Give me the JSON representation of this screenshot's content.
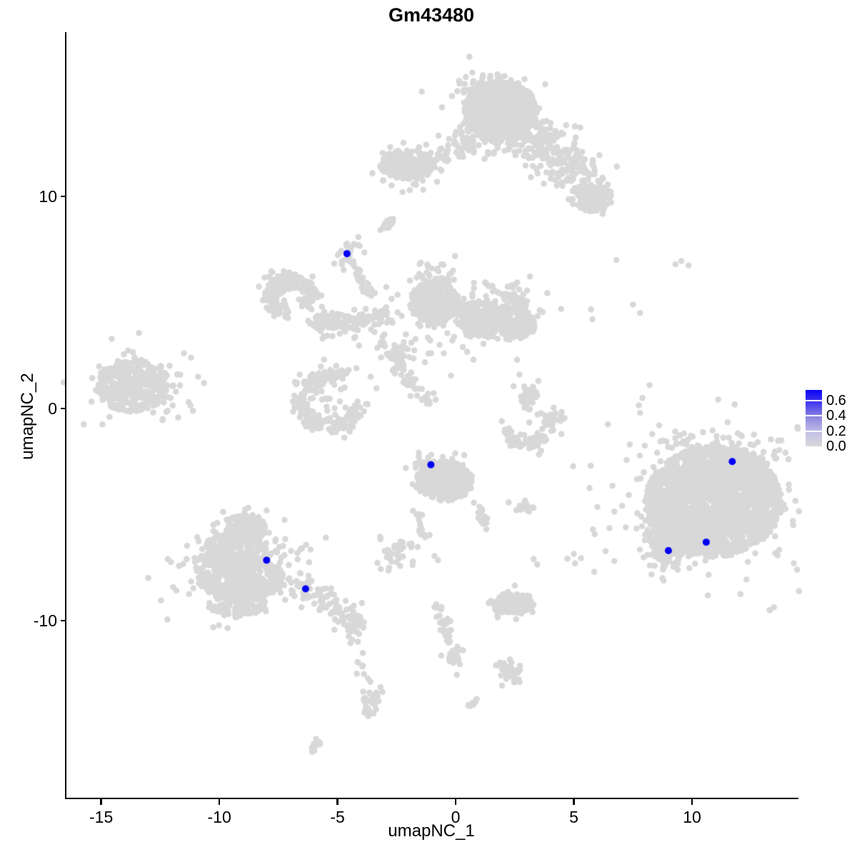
{
  "title": "Gm43480",
  "axes": {
    "x": {
      "label": "umapNC_1",
      "ticks": [
        -15,
        -10,
        -5,
        0,
        5,
        10
      ],
      "range": [
        -16.47,
        14.41
      ]
    },
    "y": {
      "label": "umapNC_2",
      "ticks": [
        -10,
        0,
        10
      ],
      "range": [
        -18.38,
        17.74
      ]
    }
  },
  "legend": {
    "breaks": [
      0.0,
      0.2,
      0.4,
      0.6
    ],
    "break_labels": [
      "0.0",
      "0.2",
      "0.4",
      "0.6"
    ],
    "scale_max": 0.735,
    "gradient_bottom_to_top": [
      "#D9D9D9",
      "#C3BFE6",
      "#928BDF",
      "#4A3FEF",
      "#0A04F2"
    ]
  },
  "colors": {
    "point_gray": "#D8D8D8",
    "point_blue": "#0000F5",
    "axis": "#000000",
    "background": "#FFFFFF"
  },
  "chart_data": {
    "type": "scatter",
    "title": "Gm43480",
    "xlabel": "umapNC_1",
    "ylabel": "umapNC_2",
    "xlim": [
      -16.47,
      14.41
    ],
    "ylim": [
      -18.38,
      17.74
    ],
    "x_ticks": [
      -15,
      -10,
      -5,
      0,
      5,
      10
    ],
    "y_ticks": [
      -10,
      0,
      10
    ],
    "grid": false,
    "legend_position": "right",
    "seed": 1337,
    "expression_points": [
      {
        "x": -4.6,
        "y": 7.3,
        "value": 0.6
      },
      {
        "x": -1.05,
        "y": -2.65,
        "value": 0.6
      },
      {
        "x": -8.0,
        "y": -7.15,
        "value": 0.6
      },
      {
        "x": -6.35,
        "y": -8.5,
        "value": 0.6
      },
      {
        "x": 9.0,
        "y": -6.7,
        "value": 0.6
      },
      {
        "x": 10.6,
        "y": -6.3,
        "value": 0.6
      },
      {
        "x": 11.7,
        "y": -2.5,
        "value": 0.6
      }
    ],
    "background_clusters": [
      {
        "t": "disk",
        "x": 1.9,
        "y": 14.0,
        "rx": 1.55,
        "ry": 1.45,
        "n": 650
      },
      {
        "t": "blob",
        "x": 1.5,
        "y": 14.7,
        "sx": 0.7,
        "sy": 0.55,
        "n": 150
      },
      {
        "t": "blob",
        "x": 1.9,
        "y": 12.9,
        "sx": 1.2,
        "sy": 0.55,
        "n": 120
      },
      {
        "t": "blob",
        "x": 4.0,
        "y": 12.1,
        "sx": 0.95,
        "sy": 0.55,
        "rot": -40,
        "n": 170
      },
      {
        "t": "line",
        "x1": 4.9,
        "y1": 11.2,
        "x2": 6.1,
        "y2": 9.9,
        "j": 0.45,
        "n": 90
      },
      {
        "t": "disk",
        "x": 5.85,
        "y": 9.85,
        "rx": 0.75,
        "ry": 0.6,
        "n": 90
      },
      {
        "t": "disk",
        "x": -2.05,
        "y": 11.5,
        "rx": 1.15,
        "ry": 0.7,
        "n": 170
      },
      {
        "t": "blob",
        "x": -2.0,
        "y": 11.5,
        "sx": 0.75,
        "sy": 0.5,
        "n": 60
      },
      {
        "t": "line",
        "x1": -0.8,
        "y1": 11.6,
        "x2": 0.55,
        "y2": 12.4,
        "j": 0.3,
        "n": 45
      },
      {
        "t": "line",
        "x1": -3.1,
        "y1": 8.5,
        "x2": -2.65,
        "y2": 9.0,
        "j": 0.09,
        "n": 22
      },
      {
        "t": "blob",
        "x": -4.55,
        "y": 7.25,
        "sx": 0.3,
        "sy": 0.38,
        "n": 30
      },
      {
        "t": "line",
        "x1": -4.3,
        "y1": 6.6,
        "x2": -3.55,
        "y2": 5.1,
        "j": 0.15,
        "n": 28
      },
      {
        "t": "arc",
        "x": -7.0,
        "y": 5.3,
        "r": 0.85,
        "th": 0.42,
        "a0": -40,
        "a1": 265,
        "n": 170
      },
      {
        "t": "blob",
        "x": -7.5,
        "y": 5.9,
        "sx": 0.3,
        "sy": 0.25,
        "n": 30
      },
      {
        "t": "line",
        "x1": -6.1,
        "y1": 4.15,
        "x2": -4.5,
        "y2": 3.95,
        "j": 0.22,
        "n": 55
      },
      {
        "t": "blob",
        "x": -5.3,
        "y": 3.95,
        "sx": 0.3,
        "sy": 0.3,
        "n": 40
      },
      {
        "t": "line",
        "x1": -4.4,
        "y1": 4.0,
        "x2": -2.9,
        "y2": 4.35,
        "j": 0.25,
        "n": 55
      },
      {
        "t": "disk",
        "x": -0.9,
        "y": 5.0,
        "rx": 1.05,
        "ry": 1.0,
        "n": 260
      },
      {
        "t": "blob",
        "x": -0.9,
        "y": 6.1,
        "sx": 0.42,
        "sy": 0.5,
        "n": 60
      },
      {
        "t": "disk",
        "x": 1.0,
        "y": 4.25,
        "rx": 1.0,
        "ry": 0.85,
        "n": 220
      },
      {
        "t": "disk",
        "x": 2.6,
        "y": 4.0,
        "rx": 0.8,
        "ry": 0.72,
        "n": 150
      },
      {
        "t": "blob",
        "x": 2.25,
        "y": 4.9,
        "sx": 0.5,
        "sy": 0.45,
        "n": 55
      },
      {
        "t": "blob",
        "x": 0.6,
        "y": 4.6,
        "sx": 1.5,
        "sy": 0.75,
        "n": 130
      },
      {
        "t": "blob",
        "x": -2.6,
        "y": 2.75,
        "sx": 0.75,
        "sy": 0.55,
        "n": 22
      },
      {
        "t": "blob",
        "x": -2.45,
        "y": 2.55,
        "sx": 0.22,
        "sy": 0.22,
        "n": 32
      },
      {
        "t": "line",
        "x1": -2.55,
        "y1": 2.0,
        "x2": -1.3,
        "y2": 0.6,
        "j": 0.13,
        "n": 32
      },
      {
        "t": "blob",
        "x": -1.15,
        "y": 0.45,
        "sx": 0.16,
        "sy": 0.16,
        "n": 12
      },
      {
        "t": "arc",
        "x": -5.3,
        "y": 0.35,
        "r": 1.25,
        "th": 0.45,
        "a0": 60,
        "a1": 360,
        "n": 210
      },
      {
        "t": "blob",
        "x": -5.3,
        "y": 0.4,
        "sx": 0.5,
        "sy": 0.45,
        "n": 14
      },
      {
        "t": "pts",
        "p": [
          [
            -6.6,
            1.6
          ],
          [
            -6.8,
            1.25
          ],
          [
            -4.2,
            1.9
          ],
          [
            -3.6,
            1.5
          ],
          [
            -3.35,
            0.95
          ],
          [
            -4.6,
            1.7
          ]
        ]
      },
      {
        "t": "disk",
        "x": 3.1,
        "y": 0.55,
        "rx": 0.38,
        "ry": 0.6,
        "n": 40
      },
      {
        "t": "pts",
        "p": [
          [
            2.6,
            2.3
          ],
          [
            2.7,
            1.6
          ],
          [
            2.45,
            1.05
          ],
          [
            3.5,
            1.3
          ]
        ]
      },
      {
        "t": "arc",
        "x": 2.95,
        "y": -0.85,
        "r": 0.8,
        "th": 0.34,
        "a0": 185,
        "a1": 330,
        "n": 60
      },
      {
        "t": "blob",
        "x": 3.9,
        "y": -0.5,
        "sx": 0.3,
        "sy": 0.28,
        "n": 30
      },
      {
        "t": "pts",
        "p": [
          [
            4.6,
            -0.45
          ],
          [
            1.95,
            -0.6
          ]
        ]
      },
      {
        "t": "disk",
        "x": -13.7,
        "y": 1.1,
        "rx": 1.5,
        "ry": 1.25,
        "n": 300
      },
      {
        "t": "blob",
        "x": -13.7,
        "y": 1.05,
        "sx": 1.0,
        "sy": 0.8,
        "n": 70
      },
      {
        "t": "blob",
        "x": -11.95,
        "y": 0.8,
        "sx": 0.6,
        "sy": 0.65,
        "n": 26
      },
      {
        "t": "pts",
        "p": [
          [
            -11.5,
            2.6
          ],
          [
            -11.2,
            2.4
          ],
          [
            -10.9,
            1.5
          ],
          [
            -12.4,
            -0.5
          ],
          [
            -11.3,
            0.3
          ]
        ]
      },
      {
        "t": "disk",
        "x": -0.45,
        "y": -3.4,
        "rx": 1.2,
        "ry": 0.95,
        "n": 280
      },
      {
        "t": "blob",
        "x": -0.9,
        "y": -3.1,
        "sx": 0.55,
        "sy": 0.45,
        "n": 90
      },
      {
        "t": "line",
        "x1": 0.85,
        "y1": -4.4,
        "x2": 1.3,
        "y2": -5.6,
        "j": 0.16,
        "n": 18
      },
      {
        "t": "line",
        "x1": -1.6,
        "y1": -4.8,
        "x2": -1.3,
        "y2": -6.1,
        "j": 0.11,
        "n": 16
      },
      {
        "t": "blob",
        "x": -2.5,
        "y": -6.9,
        "sx": 0.42,
        "sy": 0.38,
        "n": 42
      },
      {
        "t": "pts",
        "p": [
          [
            -0.9,
            -6.95
          ],
          [
            -0.75,
            -7.15
          ]
        ]
      },
      {
        "t": "line",
        "x1": 2.45,
        "y1": -4.6,
        "x2": 3.35,
        "y2": -4.75,
        "j": 0.13,
        "n": 16
      },
      {
        "t": "pts",
        "p": [
          [
            3.3,
            -7.1
          ],
          [
            3.45,
            -7.35
          ],
          [
            5.0,
            -6.85
          ],
          [
            5.3,
            -7.05
          ],
          [
            5.05,
            -7.3
          ]
        ]
      },
      {
        "t": "disk",
        "x": 2.4,
        "y": -9.2,
        "rx": 0.95,
        "ry": 0.5,
        "n": 110
      },
      {
        "t": "blob",
        "x": 2.4,
        "y": -9.2,
        "sx": 0.5,
        "sy": 0.3,
        "n": 40
      },
      {
        "t": "pts",
        "p": [
          [
            2.5,
            -8.35
          ]
        ]
      },
      {
        "t": "line",
        "x1": -0.9,
        "y1": -8.9,
        "x2": -0.3,
        "y2": -10.7,
        "j": 0.14,
        "n": 22
      },
      {
        "t": "line",
        "x1": -0.3,
        "y1": -10.7,
        "x2": 0.1,
        "y2": -11.9,
        "j": 0.12,
        "n": 20
      },
      {
        "t": "blob",
        "x": 0.0,
        "y": -11.7,
        "sx": 0.22,
        "sy": 0.3,
        "n": 16
      },
      {
        "t": "blob",
        "x": 2.3,
        "y": -12.5,
        "sx": 0.33,
        "sy": 0.3,
        "n": 30
      },
      {
        "t": "line",
        "x1": 1.95,
        "y1": -12.15,
        "x2": 2.65,
        "y2": -12.9,
        "j": 0.1,
        "n": 14
      },
      {
        "t": "pts",
        "p": [
          [
            1.7,
            -12.1
          ]
        ]
      },
      {
        "t": "line",
        "x1": 0.5,
        "y1": -14.05,
        "x2": 0.9,
        "y2": -13.7,
        "j": 0.07,
        "n": 12
      },
      {
        "t": "disk",
        "x": -8.9,
        "y": -5.6,
        "rx": 0.85,
        "ry": 0.65,
        "n": 110
      },
      {
        "t": "disk",
        "x": -9.3,
        "y": -6.8,
        "rx": 1.5,
        "ry": 0.9,
        "n": 260
      },
      {
        "t": "disk",
        "x": -9.1,
        "y": -8.0,
        "rx": 1.85,
        "ry": 1.0,
        "n": 330
      },
      {
        "t": "disk",
        "x": -9.2,
        "y": -9.2,
        "rx": 1.25,
        "ry": 0.65,
        "n": 130
      },
      {
        "t": "blob",
        "x": -9.2,
        "y": -7.5,
        "sx": 1.4,
        "sy": 1.2,
        "n": 170
      },
      {
        "t": "line",
        "x1": -6.75,
        "y1": -8.1,
        "x2": -4.95,
        "y2": -9.6,
        "j": 0.3,
        "n": 75
      },
      {
        "t": "blob",
        "x": -4.4,
        "y": -10.1,
        "sx": 0.3,
        "sy": 0.35,
        "n": 40
      },
      {
        "t": "line",
        "x1": -4.2,
        "y1": -10.8,
        "x2": -3.65,
        "y2": -14.5,
        "j": 0.13,
        "n": 20
      },
      {
        "t": "line",
        "x1": -3.8,
        "y1": -14.45,
        "x2": -3.3,
        "y2": -13.35,
        "j": 0.13,
        "n": 22
      },
      {
        "t": "line",
        "x1": -6.15,
        "y1": -16.15,
        "x2": -5.7,
        "y2": -15.65,
        "j": 0.08,
        "n": 13
      },
      {
        "t": "disk",
        "x": 10.9,
        "y": -4.4,
        "rx": 2.9,
        "ry": 2.6,
        "n": 2000
      },
      {
        "t": "disk",
        "x": 11.9,
        "y": -2.9,
        "rx": 1.35,
        "ry": 0.95,
        "n": 260
      },
      {
        "t": "disk",
        "x": 9.4,
        "y": -5.8,
        "rx": 1.3,
        "ry": 1.2,
        "n": 280
      },
      {
        "t": "blob",
        "x": 8.95,
        "y": -6.9,
        "sx": 0.45,
        "sy": 0.45,
        "n": 80
      },
      {
        "t": "blob",
        "x": 10.8,
        "y": -4.5,
        "sx": 2.2,
        "sy": 1.9,
        "n": 220
      },
      {
        "t": "blob",
        "x": 10.6,
        "y": -1.85,
        "sx": 1.3,
        "sy": 0.4,
        "n": 70
      },
      {
        "t": "pts",
        "p": [
          [
            8.2,
            1.1
          ],
          [
            7.9,
            0.5
          ],
          [
            7.75,
            0.15
          ],
          [
            7.8,
            -0.2
          ],
          [
            8.0,
            -1.75
          ],
          [
            7.5,
            4.9
          ],
          [
            7.8,
            4.5
          ],
          [
            6.8,
            7.0
          ],
          [
            9.3,
            6.8
          ],
          [
            9.55,
            6.95
          ],
          [
            9.85,
            6.75
          ]
        ]
      },
      {
        "t": "pts",
        "p": [
          [
            0.3,
            2.9
          ],
          [
            0.75,
            2.3
          ],
          [
            -0.2,
            1.55
          ],
          [
            -0.5,
            2.6
          ]
        ]
      }
    ]
  }
}
